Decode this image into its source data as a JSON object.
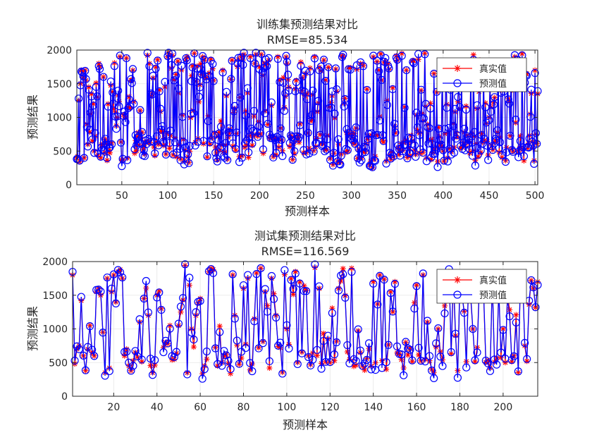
{
  "chart_data": [
    {
      "type": "line",
      "title": "训练集预测结果对比",
      "subtitle": "RMSE=85.534",
      "xlabel": "预测样本",
      "ylabel": "预测结果",
      "xlim": [
        1,
        503
      ],
      "ylim": [
        0,
        2000
      ],
      "xticks": [
        50,
        100,
        150,
        200,
        250,
        300,
        350,
        400,
        450,
        500
      ],
      "yticks": [
        0,
        500,
        1000,
        1500,
        2000
      ],
      "grid": true,
      "legend_position": "top-right",
      "n_points": 503,
      "seed": 11,
      "noise": 85,
      "series": [
        {
          "name": "真实值",
          "color": "#ff0000",
          "marker": "asterisk"
        },
        {
          "name": "预测值",
          "color": "#0000ff",
          "marker": "circle"
        }
      ],
      "anchor_values": [
        [
          1,
          400
        ],
        [
          2,
          420
        ],
        [
          3,
          1250
        ],
        [
          4,
          340
        ],
        [
          5,
          1500
        ],
        [
          6,
          1700
        ],
        [
          7,
          1680
        ],
        [
          8,
          1600
        ],
        [
          9,
          400
        ],
        [
          10,
          1700
        ],
        [
          11,
          1550
        ],
        [
          12,
          900
        ],
        [
          13,
          600
        ],
        [
          14,
          1450
        ],
        [
          15,
          780
        ],
        [
          16,
          1050
        ],
        [
          17,
          1350
        ],
        [
          18,
          650
        ],
        [
          19,
          1200
        ],
        [
          20,
          500
        ],
        [
          25,
          1800
        ],
        [
          26,
          1750
        ],
        [
          27,
          400
        ],
        [
          30,
          1600
        ],
        [
          35,
          1200
        ],
        [
          40,
          1380
        ],
        [
          45,
          1000
        ],
        [
          48,
          1900
        ],
        [
          55,
          1880
        ],
        [
          60,
          1550
        ],
        [
          62,
          1700
        ],
        [
          70,
          1100
        ],
        [
          80,
          1800
        ],
        [
          90,
          600
        ],
        [
          100,
          1900
        ],
        [
          101,
          1950
        ],
        [
          105,
          1920
        ],
        [
          120,
          1850
        ],
        [
          129,
          1950
        ],
        [
          140,
          1850
        ],
        [
          150,
          1550
        ],
        [
          160,
          1700
        ],
        [
          165,
          380
        ],
        [
          170,
          1850
        ],
        [
          180,
          1900
        ],
        [
          190,
          1900
        ],
        [
          195,
          1800
        ],
        [
          200,
          1750
        ],
        [
          210,
          1850
        ],
        [
          220,
          1900
        ],
        [
          230,
          1800
        ],
        [
          240,
          1550
        ],
        [
          250,
          1650
        ],
        [
          260,
          1900
        ],
        [
          270,
          1850
        ],
        [
          280,
          300
        ],
        [
          285,
          350
        ],
        [
          290,
          1900
        ],
        [
          300,
          700
        ],
        [
          310,
          1800
        ],
        [
          320,
          300
        ],
        [
          323,
          250
        ],
        [
          330,
          1700
        ],
        [
          340,
          1800
        ],
        [
          350,
          1850
        ],
        [
          355,
          1950
        ],
        [
          360,
          1700
        ],
        [
          370,
          450
        ],
        [
          380,
          1950
        ],
        [
          390,
          1650
        ],
        [
          400,
          500
        ],
        [
          410,
          1800
        ],
        [
          420,
          1600
        ],
        [
          430,
          1650
        ],
        [
          440,
          1850
        ],
        [
          450,
          1000
        ],
        [
          460,
          1650
        ],
        [
          470,
          1500
        ],
        [
          478,
          1900
        ],
        [
          490,
          1650
        ],
        [
          495,
          1050
        ],
        [
          500,
          1700
        ],
        [
          501,
          750
        ],
        [
          503,
          1350
        ]
      ]
    },
    {
      "type": "line",
      "title": "测试集预测结果对比",
      "subtitle": "RMSE=116.569",
      "xlabel": "预测样本",
      "ylabel": "预测结果",
      "xlim": [
        1,
        216
      ],
      "ylim": [
        0,
        2000
      ],
      "xticks": [
        20,
        40,
        60,
        80,
        100,
        120,
        140,
        160,
        180,
        200
      ],
      "yticks": [
        0,
        500,
        1000,
        1500,
        2000
      ],
      "grid": true,
      "legend_position": "top-right",
      "n_points": 216,
      "seed": 7,
      "noise": 115,
      "series": [
        {
          "name": "真实值",
          "color": "#ff0000",
          "marker": "asterisk"
        },
        {
          "name": "预测值",
          "color": "#0000ff",
          "marker": "circle"
        }
      ],
      "anchor_values": [
        [
          1,
          1800
        ],
        [
          2,
          480
        ],
        [
          3,
          700
        ],
        [
          4,
          750
        ],
        [
          5,
          1420
        ],
        [
          6,
          600
        ],
        [
          7,
          380
        ],
        [
          8,
          700
        ],
        [
          9,
          1050
        ],
        [
          10,
          650
        ],
        [
          11,
          600
        ],
        [
          12,
          1550
        ],
        [
          13,
          1600
        ],
        [
          14,
          1500
        ],
        [
          15,
          950
        ],
        [
          16,
          350
        ],
        [
          17,
          1750
        ],
        [
          18,
          420
        ],
        [
          19,
          1550
        ],
        [
          20,
          1800
        ],
        [
          21,
          1400
        ],
        [
          22,
          1850
        ],
        [
          23,
          1880
        ],
        [
          24,
          1750
        ],
        [
          25,
          600
        ],
        [
          26,
          700
        ],
        [
          27,
          450
        ],
        [
          28,
          380
        ],
        [
          30,
          650
        ],
        [
          32,
          1100
        ],
        [
          34,
          1450
        ],
        [
          36,
          1200
        ],
        [
          38,
          350
        ],
        [
          40,
          1500
        ],
        [
          42,
          1300
        ],
        [
          44,
          800
        ],
        [
          46,
          1050
        ],
        [
          48,
          550
        ],
        [
          50,
          1050
        ],
        [
          52,
          1430
        ],
        [
          54,
          350
        ],
        [
          56,
          1000
        ],
        [
          58,
          1200
        ],
        [
          60,
          1450
        ],
        [
          62,
          450
        ],
        [
          64,
          1850
        ],
        [
          65,
          1900
        ],
        [
          66,
          1880
        ],
        [
          68,
          450
        ],
        [
          70,
          500
        ],
        [
          75,
          1800
        ],
        [
          80,
          1600
        ],
        [
          82,
          1750
        ],
        [
          85,
          1150
        ],
        [
          88,
          1900
        ],
        [
          90,
          1550
        ],
        [
          93,
          1750
        ],
        [
          95,
          1200
        ],
        [
          100,
          1000
        ],
        [
          104,
          1850
        ],
        [
          110,
          600
        ],
        [
          115,
          1600
        ],
        [
          120,
          500
        ],
        [
          124,
          1600
        ],
        [
          130,
          1900
        ],
        [
          135,
          450
        ],
        [
          140,
          1700
        ],
        [
          143,
          1800
        ],
        [
          148,
          1550
        ],
        [
          150,
          1700
        ],
        [
          155,
          800
        ],
        [
          160,
          1650
        ],
        [
          163,
          1800
        ],
        [
          165,
          1100
        ],
        [
          170,
          1000
        ],
        [
          174,
          1800
        ],
        [
          175,
          1850
        ],
        [
          178,
          900
        ],
        [
          180,
          1650
        ],
        [
          185,
          1450
        ],
        [
          190,
          1600
        ],
        [
          195,
          1700
        ],
        [
          200,
          1000
        ],
        [
          205,
          600
        ],
        [
          208,
          1700
        ],
        [
          210,
          750
        ],
        [
          213,
          1720
        ],
        [
          214,
          1600
        ],
        [
          215,
          1320
        ],
        [
          216,
          1700
        ]
      ]
    }
  ]
}
